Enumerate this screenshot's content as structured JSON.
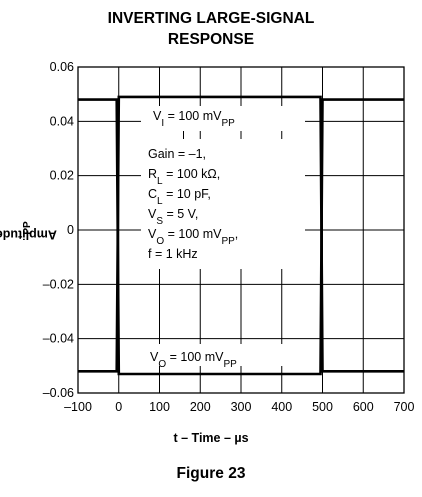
{
  "chart_data": {
    "type": "line",
    "title_line1": "INVERTING LARGE-SIGNAL",
    "title_line2": "RESPONSE",
    "ylabel": "Amplitude – V",
    "ylabel_sub": "PP",
    "xlabel": "t – Time – µs",
    "xlim": [
      -100,
      700
    ],
    "ylim": [
      -0.06,
      0.06
    ],
    "grid": true,
    "x_ticks": [
      "–100",
      "0",
      "100",
      "200",
      "300",
      "400",
      "500",
      "600",
      "700"
    ],
    "y_ticks": [
      "0.06",
      "0.04",
      "0.02",
      "0",
      "–0.02",
      "–0.04",
      "–0.06"
    ],
    "series": [
      {
        "name": "",
        "x": [
          -100,
          -5,
          0,
          495,
          500,
          700
        ],
        "y": [
          -0.052,
          -0.052,
          0.049,
          0.049,
          -0.052,
          -0.052
        ]
      },
      {
        "name": "",
        "x": [
          -100,
          -5,
          0,
          495,
          500,
          700
        ],
        "y": [
          0.048,
          0.048,
          -0.053,
          -0.053,
          0.048,
          0.048
        ]
      }
    ],
    "annotations": {
      "vi": {
        "main": "V",
        "sub": "I",
        "rest": " = 100 mV",
        "sub2": "PP"
      },
      "gain": "Gain = –1,",
      "rl": {
        "main": "R",
        "sub": "L",
        "rest": " = 100 kΩ,"
      },
      "cl": {
        "main": "C",
        "sub": "L",
        "rest": " = 10 pF,"
      },
      "vs": {
        "main": "V",
        "sub": "S",
        "rest": " = 5 V,"
      },
      "vo1": {
        "main": "V",
        "sub": "O",
        "rest": " = 100 mV",
        "sub2": "PP",
        "tail": ","
      },
      "freq": "f = 1 kHz",
      "vo2": {
        "main": "V",
        "sub": "O",
        "rest": " = 100 mV",
        "sub2": "PP"
      }
    }
  },
  "figure_caption": "Figure 23"
}
